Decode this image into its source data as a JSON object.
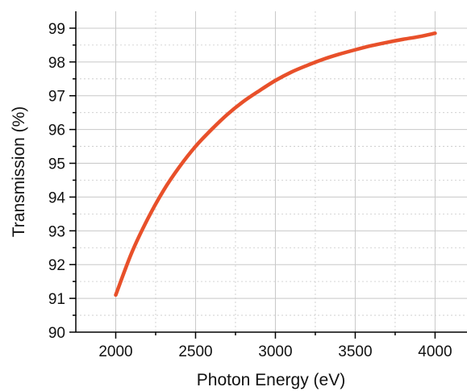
{
  "chart_data": {
    "type": "line",
    "title": "",
    "xlabel": "Photon Energy (eV)",
    "ylabel": "Transmission (%)",
    "xlim": [
      1750,
      4200
    ],
    "ylim": [
      90,
      99.5
    ],
    "xticks": [
      2000,
      2500,
      3000,
      3500,
      4000
    ],
    "yticks": [
      90,
      91,
      92,
      93,
      94,
      95,
      96,
      97,
      98,
      99
    ],
    "xtick_labels": [
      "2000",
      "2500",
      "3000",
      "3500",
      "4000"
    ],
    "ytick_labels": [
      "90",
      "91",
      "92",
      "93",
      "94",
      "95",
      "96",
      "97",
      "98",
      "99"
    ],
    "grid": true,
    "line_color": "#e8502a",
    "series": [
      {
        "x": [
          2000,
          2100,
          2200,
          2300,
          2400,
          2500,
          2600,
          2700,
          2800,
          2900,
          3000,
          3100,
          3200,
          3300,
          3400,
          3500,
          3600,
          3700,
          3800,
          3900,
          4000
        ],
        "values": [
          91.1,
          92.35,
          93.35,
          94.2,
          94.9,
          95.5,
          96.0,
          96.45,
          96.83,
          97.15,
          97.45,
          97.7,
          97.9,
          98.08,
          98.23,
          98.36,
          98.48,
          98.58,
          98.67,
          98.75,
          98.85
        ]
      }
    ]
  }
}
